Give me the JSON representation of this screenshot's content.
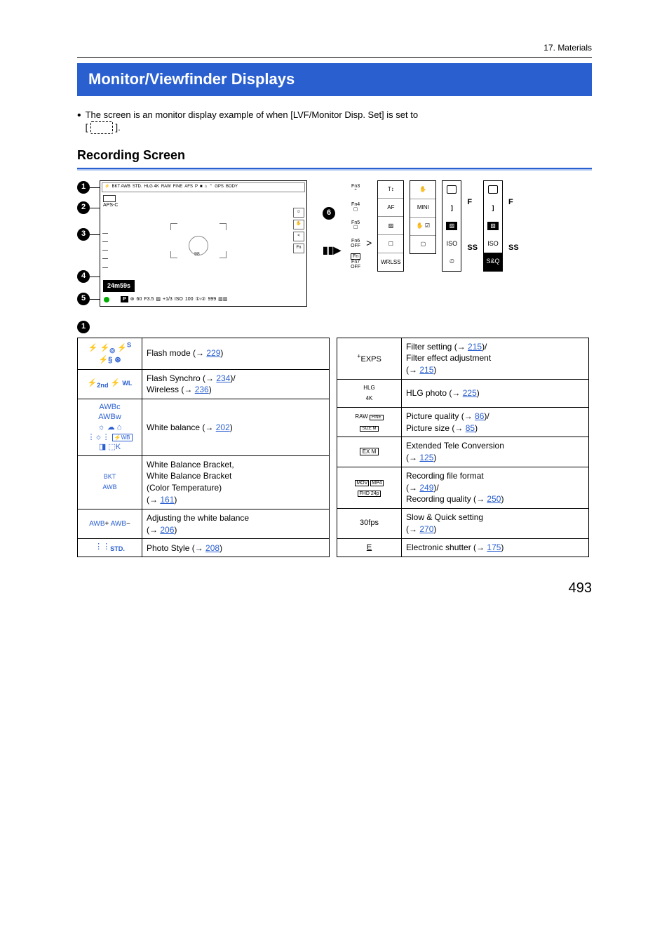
{
  "chapter": "17. Materials",
  "title": "Monitor/Viewfinder Displays",
  "intro": "The screen is an monitor display example of when [LVF/Monitor Disp. Set] is set to",
  "intro_suffix": ".",
  "section_heading": "Recording Screen",
  "diagram": {
    "time": "24m59s",
    "center_num": "98",
    "bottom": {
      "p": "P",
      "shutter": "60",
      "f": "F3.5",
      "ev": "+1/3",
      "iso_label": "ISO",
      "iso": "100",
      "shots": "999"
    },
    "top_strip": [
      "⚡",
      "BKT AWB",
      "STD.",
      "HLG 4K",
      "RAW",
      "FINE",
      "AFS",
      "P",
      "■",
      "GPS",
      "BODY"
    ],
    "row2_line1": "▢",
    "row2_line2": "APS-C",
    "right_side": [
      "☺",
      "✋",
      "<",
      "Fn"
    ],
    "callout_6": "6",
    "fn_labels": [
      "Fn3",
      "Fn4",
      "Fn5",
      "Fn6",
      "Fn7"
    ],
    "fn_sub": [
      "⌃",
      "▢",
      "☐",
      "OFF",
      "OFF"
    ],
    "panel1": [
      "T↕",
      "AF",
      "▨",
      "☐",
      "WRLSS"
    ],
    "panel2": [
      "✋",
      "MINI",
      "✋ ☑",
      "▢",
      ""
    ],
    "narrow_left": [
      "F",
      "SS",
      "▨",
      "ISO",
      "⏲"
    ],
    "narrow_right": [
      "F",
      "SS",
      "▨",
      "ISO",
      "S&Q"
    ]
  },
  "table1": [
    {
      "icon_html": "<span class='flash-ic'>⚡ ⚡<sub>◎</sub> ⚡<sup>S</sup><br>⚡§ ⊛</span>",
      "text": "Flash mode (",
      "link": "229",
      "suffix": ")"
    },
    {
      "icon_html": "<span class='flash-ic'>⚡<sub>2nd</sub> ⚡ <span style='font-size:9px'>WL</span></span>",
      "text": "Flash Synchro (",
      "link": "234",
      "suffix": ")/",
      "text2": "Wireless (",
      "link2": "236",
      "suffix2": ")"
    },
    {
      "icon_html": "<span class='wb-icons'><span class='wb-row'>AWBc</span><span class='wb-row'>AWBw</span><span class='wb-row'>☼ ☁ ⌂</span><span class='wb-row'>⋮☼⋮ <span style='border:1px solid #2a5fd0;padding:0 2px;font-size:8px'>⚡WB</span></span><span class='wb-row'>◨ ⬚K</span></span>",
      "text": "White balance (",
      "link": "202",
      "suffix": ")"
    },
    {
      "icon_html": "<span style='font-size:9px'>BKT<br>AWB</span>",
      "text_multi": "White Balance Bracket,<br>White Balance Bracket<br>(Color Temperature)<br>(",
      "link": "161",
      "suffix": ")"
    },
    {
      "icon_html": "<span style='font-size:10px'>AWB<span style='color:#000'>+</span> AWB<span style='color:#000'>−</span></span>",
      "text": "Adjusting the white balance<br>(",
      "link": "206",
      "suffix": ")"
    },
    {
      "icon_html": "<span style='font-size:11px'>⋮⋮<sub style='font-weight:bold'>STD.</sub></span>",
      "text": "Photo Style (",
      "link": "208",
      "suffix": ")"
    }
  ],
  "table2": [
    {
      "icon_html": "<span class='ic-black' style='font-size:11px'><sup>+</sup>EXPS</span>",
      "text": "Filter setting (",
      "link": "215",
      "suffix": ")/",
      "text2": "Filter effect adjustment<br>(",
      "link2": "215",
      "suffix2": ")"
    },
    {
      "icon_html": "<span class='ic-black' style='font-size:8px'>HLG<br>4K</span>",
      "text": "HLG photo (",
      "link": "225",
      "suffix": ")"
    },
    {
      "icon_html": "<span class='ic-black' style='font-size:8px'>RAW <span style='border:1px solid #000;padding:0 2px;font-size:6px'>FINE</span><br><span style='border:1px solid #000;padding:0 2px;font-size:6px'>SIZE M</span></span>",
      "text": "Picture quality (",
      "link": "86",
      "suffix": ")/",
      "text2b": "Picture size (",
      "link2": "85",
      "suffix2": ")"
    },
    {
      "icon_html": "<span class='ic-black' style='border:1px solid #000;padding:0 3px;font-size:8px'>EX M</span>",
      "text": "Extended Tele Conversion<br>(",
      "link": "125",
      "suffix": ")"
    },
    {
      "icon_html": "<span class='ic-black' style='font-size:7px'><span style='border:1px solid #000;padding:0 1px'>MOV</span> <span style='border:1px solid #000;padding:0 1px'>MP4</span><br><span style='border:1px solid #000;padding:0 1px'>FHD 24p</span></span>",
      "text": "Recording file format<br>(",
      "link": "249",
      "suffix": ")/",
      "text2b": "Recording quality (",
      "link2": "250",
      "suffix2": ")"
    },
    {
      "icon_html": "<span class='ic-black' style='font-size:11px'>30fps</span>",
      "text": "Slow & Quick setting<br>(",
      "link": "270",
      "suffix": ")"
    },
    {
      "icon_html": "<span class='ic-black' style='font-size:11px;text-decoration:underline'>E</span>",
      "text": "Electronic shutter (",
      "link": "175",
      "suffix": ")"
    }
  ],
  "page_number": "493",
  "colors": {
    "blue": "#2a5fd0"
  }
}
